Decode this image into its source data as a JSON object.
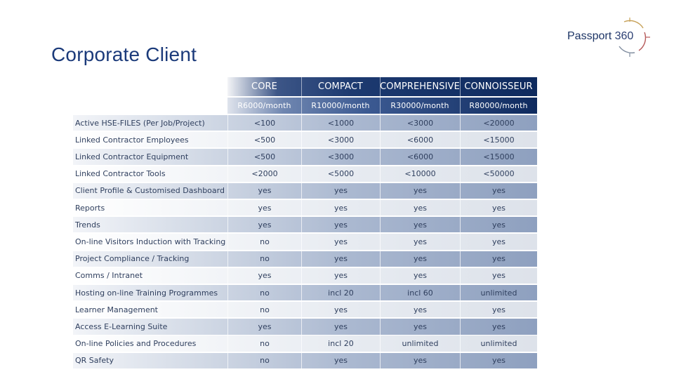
{
  "slide": {
    "title": "Corporate Client",
    "logo": {
      "word": "Passport",
      "number": "360"
    }
  },
  "colors": {
    "title": "#1b3a7a",
    "header_dark": "#0e2a5e",
    "row_dark": "#9aa9c4",
    "row_light": "#e4e8ef",
    "text": "#2f3f5e"
  },
  "table": {
    "tiers": [
      {
        "name": "CORE",
        "price": "R6000/month"
      },
      {
        "name": "COMPACT",
        "price": "R10000/month"
      },
      {
        "name": "COMPREHENSIVE",
        "price": "R30000/month"
      },
      {
        "name": "CONNOISSEUR",
        "price": "R80000/month"
      }
    ],
    "rows": [
      {
        "feature": "Active HSE-FILES (Per Job/Project)",
        "values": [
          "<100",
          "<1000",
          "<3000",
          "<20000"
        ]
      },
      {
        "feature": "Linked Contractor Employees",
        "values": [
          "<500",
          "<3000",
          "<6000",
          "<15000"
        ]
      },
      {
        "feature": "Linked Contractor Equipment",
        "values": [
          "<500",
          "<3000",
          "<6000",
          "<15000"
        ]
      },
      {
        "feature": "Linked Contractor Tools",
        "values": [
          "<2000",
          "<5000",
          "<10000",
          "<50000"
        ]
      },
      {
        "feature": "Client Profile & Customised Dashboard",
        "values": [
          "yes",
          "yes",
          "yes",
          "yes"
        ]
      },
      {
        "feature": "Reports",
        "values": [
          "yes",
          "yes",
          "yes",
          "yes"
        ]
      },
      {
        "feature": "Trends",
        "values": [
          "yes",
          "yes",
          "yes",
          "yes"
        ]
      },
      {
        "feature": "On-line Visitors Induction with Tracking",
        "values": [
          "no",
          "yes",
          "yes",
          "yes"
        ]
      },
      {
        "feature": "Project Compliance / Tracking",
        "values": [
          "no",
          "yes",
          "yes",
          "yes"
        ]
      },
      {
        "feature": "Comms / Intranet",
        "values": [
          "yes",
          "yes",
          "yes",
          "yes"
        ]
      },
      {
        "feature": "Hosting on-line Training Programmes",
        "values": [
          "no",
          "incl 20",
          "incl 60",
          "unlimited"
        ]
      },
      {
        "feature": "Learner Management",
        "values": [
          "no",
          "yes",
          "yes",
          "yes"
        ]
      },
      {
        "feature": "Access E-Learning Suite",
        "values": [
          "yes",
          "yes",
          "yes",
          "yes"
        ]
      },
      {
        "feature": "On-line Policies and Procedures",
        "values": [
          "no",
          "incl 20",
          "unlimited",
          "unlimited"
        ]
      },
      {
        "feature": "QR Safety",
        "values": [
          "no",
          "yes",
          "yes",
          "yes"
        ]
      }
    ]
  }
}
